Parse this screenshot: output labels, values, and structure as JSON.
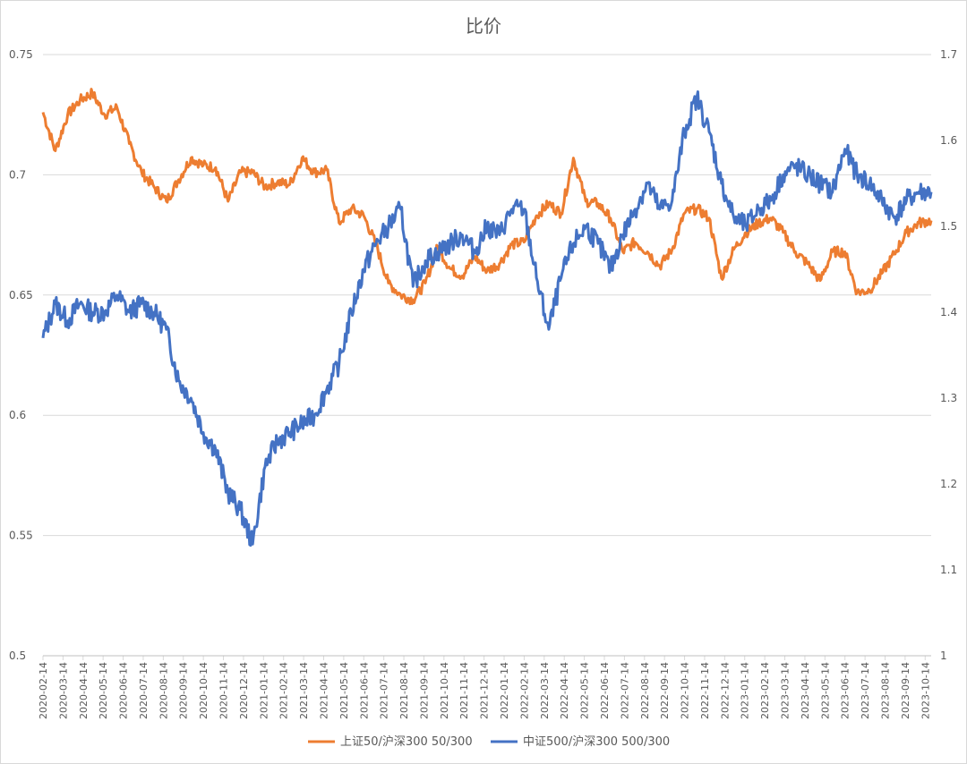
{
  "chart_data": {
    "type": "line",
    "title": "比价",
    "y_left": {
      "min": 0.5,
      "max": 0.75,
      "ticks": [
        "0.5",
        "0.55",
        "0.6",
        "0.65",
        "0.7",
        "0.75"
      ]
    },
    "y_right": {
      "min": 1,
      "max": 1.7,
      "ticks": [
        "1",
        "1.1",
        "1.2",
        "1.3",
        "1.4",
        "1.5",
        "1.6",
        "1.7"
      ]
    },
    "x_labels": [
      "2020-02-14",
      "2020-03-14",
      "2020-04-14",
      "2020-05-14",
      "2020-06-14",
      "2020-07-14",
      "2020-08-14",
      "2020-09-14",
      "2020-10-14",
      "2020-11-14",
      "2020-12-14",
      "2021-01-14",
      "2021-02-14",
      "2021-03-14",
      "2021-04-14",
      "2021-05-14",
      "2021-06-14",
      "2021-07-14",
      "2021-08-14",
      "2021-09-14",
      "2021-10-14",
      "2021-11-14",
      "2021-12-14",
      "2022-01-14",
      "2022-02-14",
      "2022-03-14",
      "2022-04-14",
      "2022-05-14",
      "2022-06-14",
      "2022-07-14",
      "2022-08-14",
      "2022-09-14",
      "2022-10-14",
      "2022-11-14",
      "2022-12-14",
      "2023-01-14",
      "2023-02-14",
      "2023-03-14",
      "2023-04-14",
      "2023-05-14",
      "2023-06-14",
      "2023-07-14",
      "2023-08-14",
      "2023-09-14",
      "2023-10-14"
    ],
    "series": [
      {
        "name": "上证50/沪深300 50/300",
        "axis": "left",
        "color": "#ED7D31",
        "values": [
          0.726,
          0.71,
          0.725,
          0.731,
          0.734,
          0.725,
          0.728,
          0.713,
          0.701,
          0.695,
          0.689,
          0.698,
          0.707,
          0.704,
          0.703,
          0.689,
          0.701,
          0.701,
          0.695,
          0.697,
          0.696,
          0.707,
          0.701,
          0.702,
          0.68,
          0.686,
          0.683,
          0.671,
          0.655,
          0.65,
          0.648,
          0.655,
          0.67,
          0.661,
          0.658,
          0.666,
          0.66,
          0.663,
          0.671,
          0.672,
          0.683,
          0.688,
          0.684,
          0.707,
          0.689,
          0.688,
          0.682,
          0.668,
          0.672,
          0.668,
          0.662,
          0.669,
          0.684,
          0.686,
          0.682,
          0.657,
          0.669,
          0.676,
          0.68,
          0.682,
          0.676,
          0.668,
          0.663,
          0.656,
          0.668,
          0.668,
          0.651,
          0.652,
          0.659,
          0.667,
          0.676,
          0.68,
          0.681
        ]
      },
      {
        "name": "中证500/沪深300 500/300",
        "axis": "right",
        "color": "#4472C4",
        "values": [
          1.37,
          1.41,
          1.39,
          1.41,
          1.4,
          1.4,
          1.42,
          1.4,
          1.41,
          1.4,
          1.38,
          1.32,
          1.3,
          1.26,
          1.24,
          1.19,
          1.17,
          1.13,
          1.22,
          1.25,
          1.26,
          1.27,
          1.28,
          1.31,
          1.34,
          1.4,
          1.45,
          1.48,
          1.5,
          1.52,
          1.43,
          1.46,
          1.47,
          1.48,
          1.49,
          1.47,
          1.5,
          1.49,
          1.52,
          1.52,
          1.44,
          1.38,
          1.44,
          1.48,
          1.5,
          1.48,
          1.45,
          1.49,
          1.52,
          1.55,
          1.52,
          1.53,
          1.61,
          1.65,
          1.61,
          1.55,
          1.51,
          1.5,
          1.52,
          1.53,
          1.56,
          1.57,
          1.56,
          1.55,
          1.54,
          1.59,
          1.56,
          1.55,
          1.53,
          1.51,
          1.53,
          1.54,
          1.54
        ]
      }
    ]
  }
}
